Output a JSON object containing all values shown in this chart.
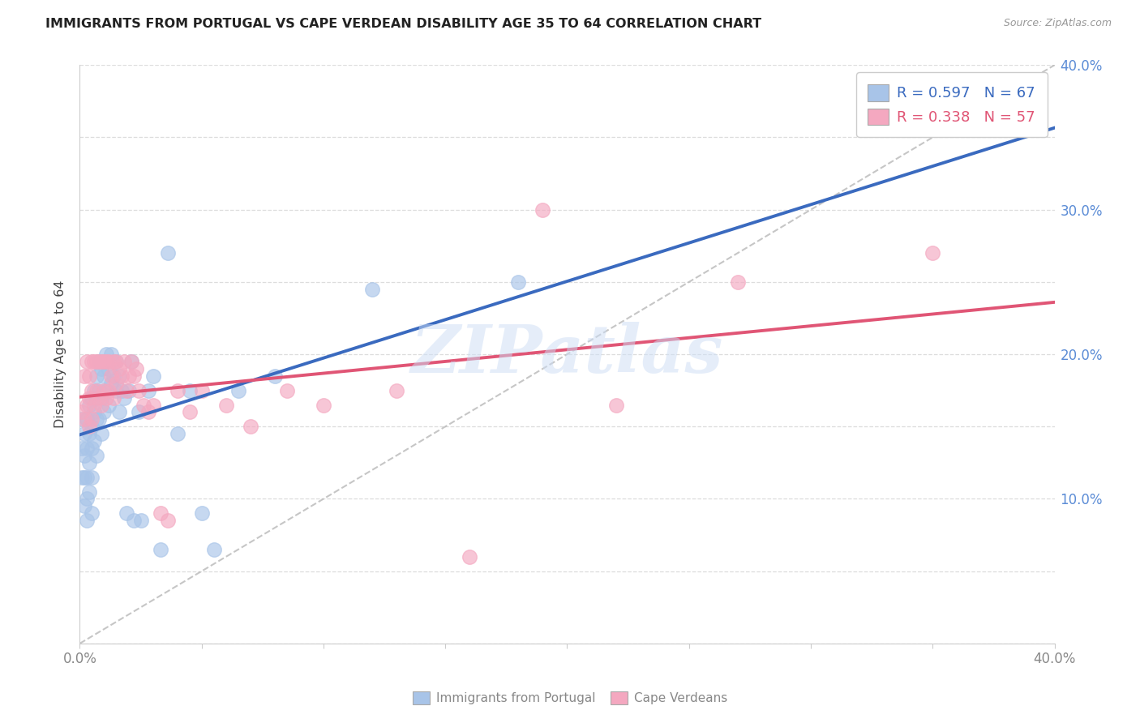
{
  "title": "IMMIGRANTS FROM PORTUGAL VS CAPE VERDEAN DISABILITY AGE 35 TO 64 CORRELATION CHART",
  "source": "Source: ZipAtlas.com",
  "ylabel": "Disability Age 35 to 64",
  "xlim": [
    0.0,
    0.4
  ],
  "ylim": [
    0.0,
    0.4
  ],
  "portugal_color": "#a8c4e8",
  "capeverde_color": "#f4a8c0",
  "portugal_R": 0.597,
  "portugal_N": 67,
  "capeverde_R": 0.338,
  "capeverde_N": 57,
  "portugal_line_color": "#3a6abf",
  "capeverde_line_color": "#e05575",
  "diagonal_color": "#b8b8b8",
  "background_color": "#ffffff",
  "grid_color": "#dddddd",
  "right_label_color": "#5b8cd6",
  "legend_label1": "Immigrants from Portugal",
  "legend_label2": "Cape Verdeans",
  "portugal_x": [
    0.001,
    0.001,
    0.001,
    0.002,
    0.002,
    0.002,
    0.002,
    0.003,
    0.003,
    0.003,
    0.003,
    0.003,
    0.004,
    0.004,
    0.004,
    0.004,
    0.005,
    0.005,
    0.005,
    0.005,
    0.005,
    0.006,
    0.006,
    0.006,
    0.007,
    0.007,
    0.007,
    0.007,
    0.008,
    0.008,
    0.008,
    0.009,
    0.009,
    0.009,
    0.01,
    0.01,
    0.011,
    0.011,
    0.012,
    0.012,
    0.013,
    0.013,
    0.014,
    0.015,
    0.015,
    0.016,
    0.016,
    0.017,
    0.018,
    0.019,
    0.02,
    0.021,
    0.022,
    0.024,
    0.025,
    0.028,
    0.03,
    0.033,
    0.036,
    0.04,
    0.045,
    0.05,
    0.055,
    0.065,
    0.08,
    0.12,
    0.18
  ],
  "portugal_y": [
    0.155,
    0.135,
    0.115,
    0.145,
    0.13,
    0.115,
    0.095,
    0.155,
    0.135,
    0.115,
    0.1,
    0.085,
    0.165,
    0.145,
    0.125,
    0.105,
    0.17,
    0.15,
    0.135,
    0.115,
    0.09,
    0.175,
    0.16,
    0.14,
    0.185,
    0.17,
    0.155,
    0.13,
    0.195,
    0.175,
    0.155,
    0.19,
    0.17,
    0.145,
    0.185,
    0.16,
    0.2,
    0.175,
    0.19,
    0.165,
    0.2,
    0.18,
    0.185,
    0.195,
    0.175,
    0.185,
    0.16,
    0.175,
    0.17,
    0.09,
    0.175,
    0.195,
    0.085,
    0.16,
    0.085,
    0.175,
    0.185,
    0.065,
    0.27,
    0.145,
    0.175,
    0.09,
    0.065,
    0.175,
    0.185,
    0.245,
    0.25
  ],
  "capeverde_x": [
    0.001,
    0.002,
    0.002,
    0.003,
    0.003,
    0.004,
    0.004,
    0.004,
    0.005,
    0.005,
    0.005,
    0.006,
    0.006,
    0.007,
    0.007,
    0.008,
    0.008,
    0.009,
    0.009,
    0.01,
    0.01,
    0.011,
    0.011,
    0.012,
    0.012,
    0.013,
    0.014,
    0.014,
    0.015,
    0.015,
    0.016,
    0.017,
    0.018,
    0.019,
    0.02,
    0.021,
    0.022,
    0.023,
    0.024,
    0.026,
    0.028,
    0.03,
    0.033,
    0.036,
    0.04,
    0.045,
    0.05,
    0.06,
    0.07,
    0.085,
    0.1,
    0.13,
    0.16,
    0.19,
    0.22,
    0.27,
    0.35
  ],
  "capeverde_y": [
    0.16,
    0.185,
    0.155,
    0.195,
    0.165,
    0.185,
    0.17,
    0.15,
    0.195,
    0.175,
    0.155,
    0.195,
    0.165,
    0.195,
    0.175,
    0.195,
    0.17,
    0.195,
    0.165,
    0.195,
    0.175,
    0.195,
    0.17,
    0.195,
    0.175,
    0.185,
    0.195,
    0.17,
    0.195,
    0.18,
    0.19,
    0.185,
    0.195,
    0.175,
    0.185,
    0.195,
    0.185,
    0.19,
    0.175,
    0.165,
    0.16,
    0.165,
    0.09,
    0.085,
    0.175,
    0.16,
    0.175,
    0.165,
    0.15,
    0.175,
    0.165,
    0.175,
    0.06,
    0.3,
    0.165,
    0.25,
    0.27
  ]
}
